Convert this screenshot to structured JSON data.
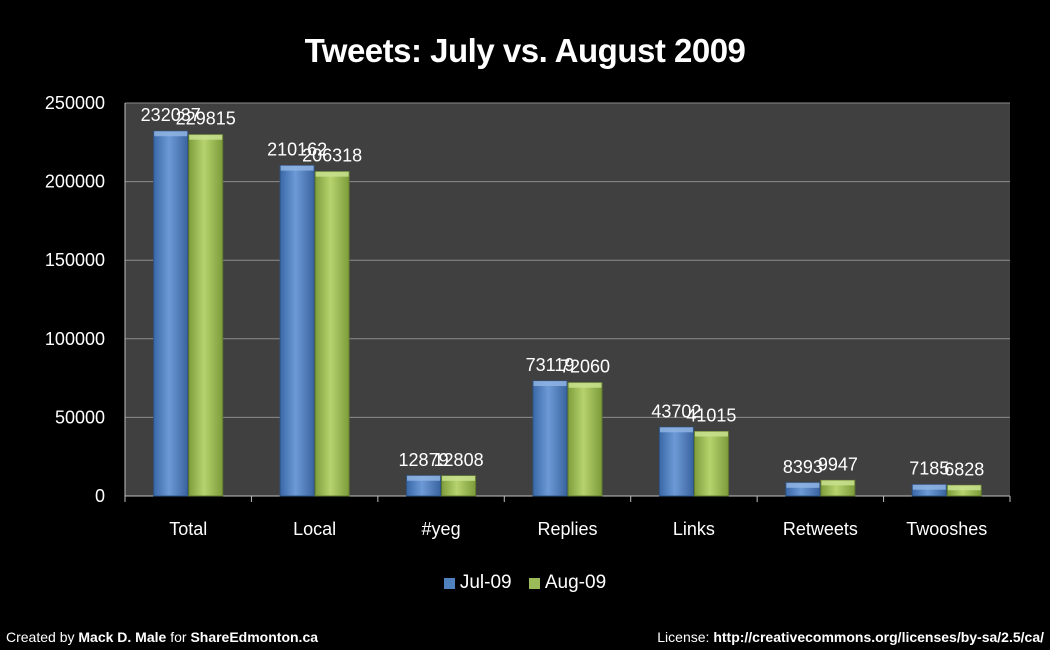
{
  "chart_data": {
    "type": "bar",
    "title": "Tweets: July vs. August 2009",
    "xlabel": "",
    "ylabel": "",
    "categories": [
      "Total",
      "Local",
      "#yeg",
      "Replies",
      "Links",
      "Retweets",
      "Twooshes"
    ],
    "series": [
      {
        "name": "Jul-09",
        "color": "#4f81bd",
        "values": [
          232037,
          210162,
          12879,
          73119,
          43702,
          8393,
          7185
        ]
      },
      {
        "name": "Aug-09",
        "color": "#9bbb59",
        "values": [
          229815,
          206318,
          12808,
          72060,
          41015,
          9947,
          6828
        ]
      }
    ],
    "ylim": [
      0,
      250000
    ],
    "yticks": [
      0,
      50000,
      100000,
      150000,
      200000,
      250000
    ],
    "grid": true,
    "legend": "bottom",
    "plot_background": "#404040"
  },
  "footer": {
    "created_prefix": "Created by ",
    "author": "Mack D. Male",
    "for_text": " for ",
    "site": "ShareEdmonton.ca",
    "license_prefix": "License: ",
    "license_url": "http://creativecommons.org/licenses/by-sa/2.5/ca/"
  }
}
